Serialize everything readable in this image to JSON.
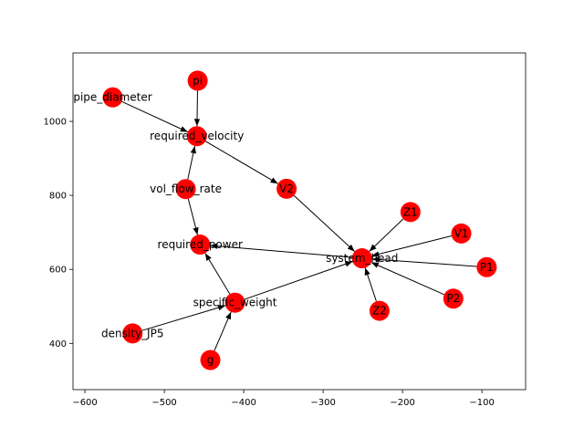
{
  "chart_data": {
    "type": "scatter",
    "title": "",
    "xlabel": "",
    "ylabel": "",
    "xlim": [
      -615,
      -45
    ],
    "ylim": [
      275,
      1185
    ],
    "xticks": [
      -600,
      -500,
      -400,
      -300,
      -200,
      -100
    ],
    "yticks": [
      400,
      600,
      800,
      1000
    ],
    "xtick_labels": [
      "−600",
      "−500",
      "−400",
      "−300",
      "−200",
      "−100"
    ],
    "ytick_labels": [
      "400",
      "600",
      "800",
      "1000"
    ],
    "grid": false,
    "node_color": "#ff0000",
    "edge_color": "#000000",
    "nodes": [
      {
        "id": "pipe_diameter",
        "label": "pipe_diameter",
        "x": -565,
        "y": 1065
      },
      {
        "id": "pi",
        "label": "pi",
        "x": -458,
        "y": 1110
      },
      {
        "id": "required_velocity",
        "label": "required_velocity",
        "x": -459,
        "y": 960
      },
      {
        "id": "vol_flow_rate",
        "label": "vol_flow_rate",
        "x": -473,
        "y": 817
      },
      {
        "id": "V2",
        "label": "V2",
        "x": -346,
        "y": 818
      },
      {
        "id": "required_power",
        "label": "required_power",
        "x": -455,
        "y": 667
      },
      {
        "id": "system_head",
        "label": "system_head",
        "x": -251,
        "y": 630
      },
      {
        "id": "Z1",
        "label": "Z1",
        "x": -190,
        "y": 755
      },
      {
        "id": "V1",
        "label": "V1",
        "x": -126,
        "y": 697
      },
      {
        "id": "P1",
        "label": "P1",
        "x": -94,
        "y": 606
      },
      {
        "id": "P2",
        "label": "P2",
        "x": -136,
        "y": 521
      },
      {
        "id": "Z2",
        "label": "Z2",
        "x": -229,
        "y": 488
      },
      {
        "id": "specific_weight",
        "label": "specific_weight",
        "x": -411,
        "y": 510
      },
      {
        "id": "density_JP5",
        "label": "density_JP5",
        "x": -540,
        "y": 427
      },
      {
        "id": "g",
        "label": "g",
        "x": -442,
        "y": 355
      }
    ],
    "edges": [
      {
        "source": "pipe_diameter",
        "target": "required_velocity"
      },
      {
        "source": "pi",
        "target": "required_velocity"
      },
      {
        "source": "vol_flow_rate",
        "target": "required_velocity"
      },
      {
        "source": "required_velocity",
        "target": "V2"
      },
      {
        "source": "vol_flow_rate",
        "target": "required_power"
      },
      {
        "source": "V2",
        "target": "system_head"
      },
      {
        "source": "system_head",
        "target": "required_power"
      },
      {
        "source": "Z1",
        "target": "system_head"
      },
      {
        "source": "V1",
        "target": "system_head"
      },
      {
        "source": "P1",
        "target": "system_head"
      },
      {
        "source": "P2",
        "target": "system_head"
      },
      {
        "source": "Z2",
        "target": "system_head"
      },
      {
        "source": "specific_weight",
        "target": "system_head"
      },
      {
        "source": "specific_weight",
        "target": "required_power"
      },
      {
        "source": "density_JP5",
        "target": "specific_weight"
      },
      {
        "source": "g",
        "target": "specific_weight"
      }
    ]
  }
}
